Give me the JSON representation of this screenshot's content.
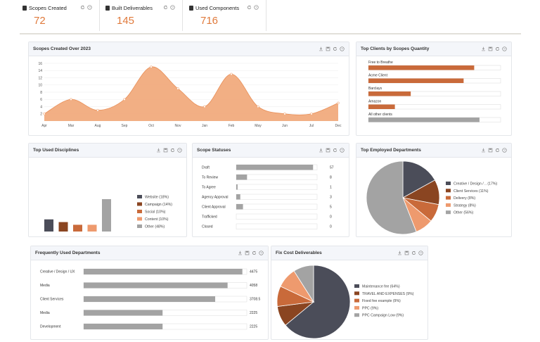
{
  "kpis": [
    {
      "title": "Scopes Created",
      "value": "72",
      "icon": "document-icon"
    },
    {
      "title": "Built Deliverables",
      "value": "145",
      "icon": "document-icon"
    },
    {
      "title": "Used Components",
      "value": "716",
      "icon": "layers-icon"
    }
  ],
  "colors": {
    "accent": "#e07a3c",
    "area": "#f1ab7d",
    "bar_orange": "#c96a3a",
    "bar_gray": "#a3a3a3",
    "dark": "#4b4d59"
  },
  "scopes_over_time": {
    "title": "Scopes Created Over 2023",
    "chart_data": {
      "type": "area",
      "x": [
        "Apr",
        "Mar",
        "Aug",
        "Sep",
        "Oct",
        "Nov",
        "Jan",
        "Feb",
        "May",
        "Jun",
        "Jul",
        "Dec"
      ],
      "values": [
        2,
        6,
        3,
        6,
        15,
        9,
        4,
        13,
        4,
        2,
        2,
        5
      ],
      "ylim": [
        0,
        16
      ],
      "yticks": [
        2,
        4,
        6,
        8,
        10,
        12,
        14,
        16
      ]
    }
  },
  "top_clients": {
    "title": "Top Clients by Scopes Quantity",
    "chart_data": {
      "type": "bar",
      "categories": [
        "Free to Breathe",
        "Acme Client",
        "Barclays",
        "Amazon",
        "All other clients"
      ],
      "values": [
        80,
        72,
        32,
        20,
        84
      ],
      "max": 100
    }
  },
  "disciplines": {
    "title": "Top Used Disciplines",
    "chart_data": {
      "type": "bar",
      "categories": [
        "Website (18%)",
        "Campaign (14%)",
        "Social (10%)",
        "Content (10%)",
        "Other (48%)"
      ],
      "values": [
        18,
        14,
        10,
        10,
        48
      ],
      "colors": [
        "#4b4d59",
        "#8a4521",
        "#c96a3a",
        "#ee9a6e",
        "#a3a3a3"
      ]
    }
  },
  "scope_statuses": {
    "title": "Scope Statuses",
    "chart_data": {
      "type": "bar",
      "categories": [
        "Draft",
        "To Review",
        "To Agree",
        "Agency Approval",
        "Client Approval",
        "Trafficked",
        "Closed"
      ],
      "values": [
        57,
        8,
        1,
        3,
        5,
        0,
        0
      ],
      "max": 60
    }
  },
  "departments": {
    "title": "Top Employed Departments",
    "chart_data": {
      "type": "pie",
      "labels": [
        "Creative / Design / .. (17%)",
        "Client Services (11%)",
        "Delivery (8%)",
        "Strategy (8%)",
        "Other (56%)"
      ],
      "values": [
        17,
        11,
        8,
        8,
        56
      ],
      "colors": [
        "#4b4d59",
        "#8a4521",
        "#c96a3a",
        "#ee9a6e",
        "#a3a3a3"
      ]
    }
  },
  "frequent_departments": {
    "title": "Frequently Used Departments",
    "chart_data": {
      "type": "bar",
      "categories": [
        "Creative / Design / UX",
        "Media",
        "Client Services",
        "Media",
        "Development"
      ],
      "values": [
        4475,
        4058,
        3708.5,
        2225,
        2225
      ],
      "max": 4600
    }
  },
  "fix_cost": {
    "title": "Fix Cost Deliverables",
    "chart_data": {
      "type": "pie",
      "labels": [
        "Maintenance fee (64%)",
        "TRAVEL AND EXPENSES (9%)",
        "Fixed fee example (9%)",
        "PPC (9%)",
        "PPC Campaign Low (9%)"
      ],
      "values": [
        64,
        9,
        9,
        9,
        9
      ],
      "colors": [
        "#4b4d59",
        "#8a4521",
        "#c96a3a",
        "#ee9a6e",
        "#a3a3a3"
      ]
    }
  }
}
